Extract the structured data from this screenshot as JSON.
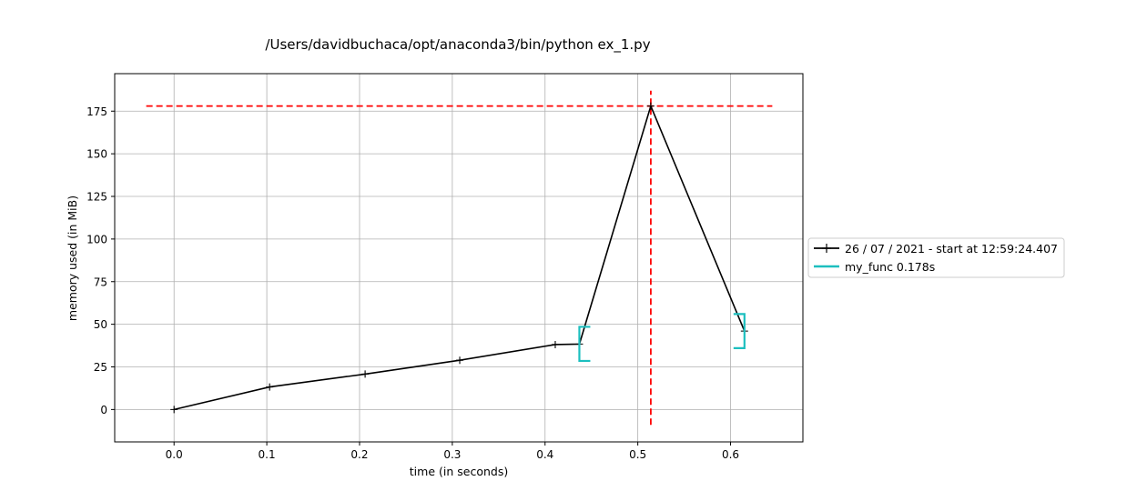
{
  "chart_data": {
    "type": "line",
    "title": "/Users/davidbuchaca/opt/anaconda3/bin/python ex_1.py",
    "xlabel": "time (in seconds)",
    "ylabel": "memory used (in MiB)",
    "xlim": [
      -0.064,
      0.678
    ],
    "ylim": [
      -19,
      197
    ],
    "xticks": [
      0.0,
      0.1,
      0.2,
      0.3,
      0.4,
      0.5,
      0.6
    ],
    "xtick_labels": [
      "0.0",
      "0.1",
      "0.2",
      "0.3",
      "0.4",
      "0.5",
      "0.6"
    ],
    "yticks": [
      0,
      25,
      50,
      75,
      100,
      125,
      150,
      175
    ],
    "ytick_labels": [
      "0",
      "25",
      "50",
      "75",
      "100",
      "125",
      "150",
      "175"
    ],
    "grid": true,
    "legend_placement": "right",
    "series": [
      {
        "name": "26 / 07 / 2021 - start at 12:59:24.407",
        "color": "#000000",
        "marker": "+",
        "x": [
          0.0,
          0.103,
          0.206,
          0.308,
          0.411,
          0.437,
          0.514,
          0.615
        ],
        "y": [
          0.0,
          13.2,
          20.8,
          28.9,
          38.1,
          38.4,
          178.0,
          46.0
        ]
      }
    ],
    "annotations": {
      "peak_hline": {
        "y": 178.0,
        "x_from": -0.03,
        "x_to": 0.645,
        "color": "#ff0000",
        "style": "dashed"
      },
      "peak_vline": {
        "x": 0.514,
        "y_from": -9,
        "y_to": 187,
        "color": "#ff0000",
        "style": "dashed"
      },
      "function_brackets": [
        {
          "name": "my_func 0.178s",
          "color": "#1cbfbf",
          "open_x": 0.437,
          "open_y": [
            28.5,
            48.5
          ],
          "close_x": 0.615,
          "close_y": [
            36.0,
            56.0
          ]
        }
      ]
    },
    "legend": [
      {
        "label": "26 / 07 / 2021 - start at 12:59:24.407",
        "color": "#000000",
        "marker": "+"
      },
      {
        "label": "my_func 0.178s",
        "color": "#1cbfbf",
        "marker": ""
      }
    ]
  }
}
